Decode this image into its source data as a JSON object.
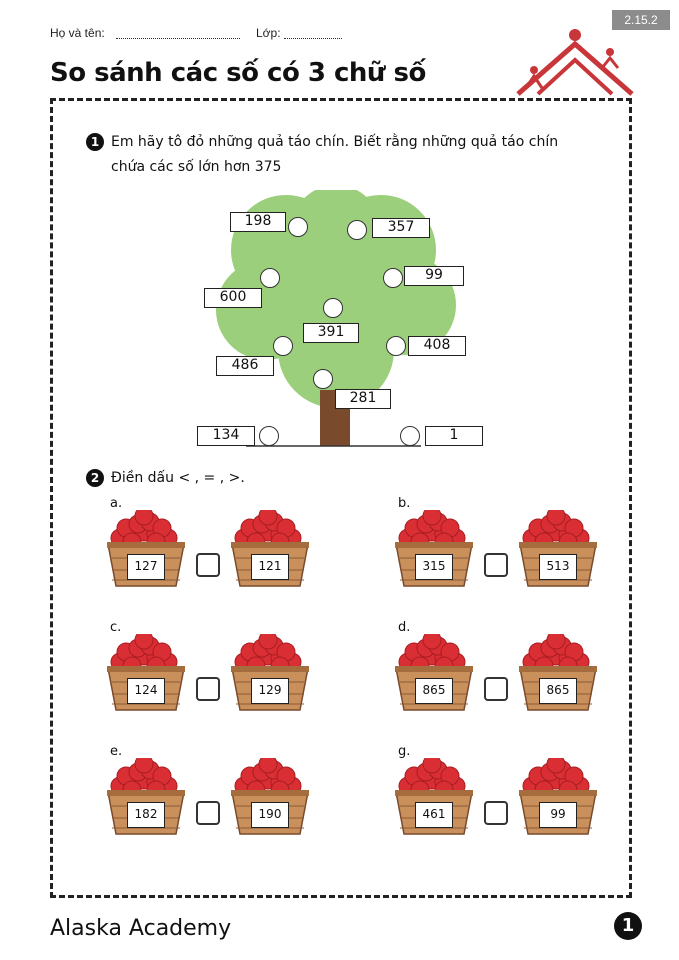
{
  "header": {
    "code": "2.15.2",
    "name_label": "Họ và tên:",
    "class_label": "Lớp:"
  },
  "title": "So sánh các số có 3 chữ số",
  "question1": {
    "number": "1",
    "line1": "Em hãy tô đỏ những quả táo chín. Biết rằng những quả táo chín",
    "line2": "chứa các số lớn hơn 375",
    "tree_numbers": [
      "198",
      "357",
      "99",
      "600",
      "391",
      "408",
      "486",
      "281",
      "134",
      "1"
    ]
  },
  "question2": {
    "number": "2",
    "instruction": "Điền dấu < , = , >.",
    "items": [
      {
        "label": "a.",
        "left": "127",
        "right": "121"
      },
      {
        "label": "b.",
        "left": "315",
        "right": "513"
      },
      {
        "label": "c.",
        "left": "124",
        "right": "129"
      },
      {
        "label": "d.",
        "left": "865",
        "right": "865"
      },
      {
        "label": "e.",
        "left": "182",
        "right": "190"
      },
      {
        "label": "g.",
        "left": "461",
        "right": "99"
      }
    ]
  },
  "footer": {
    "brand": "Alaska Academy",
    "page": "1"
  },
  "colors": {
    "logo_red": "#c8363a",
    "tree_green": "#9ccf7c",
    "trunk_brown": "#7a4a2c",
    "apple_red": "#d92e33",
    "basket_brown": "#c9905c"
  }
}
